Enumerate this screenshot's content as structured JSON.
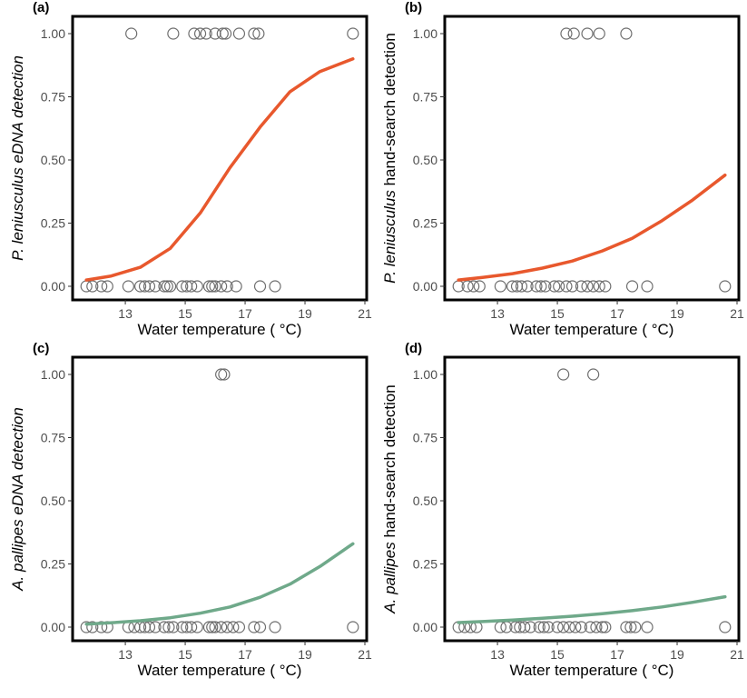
{
  "chart_data": [
    {
      "type": "scatter",
      "panel_label": "(a)",
      "ylabel": {
        "italic": "P. leniusculus eDNA detection",
        "normal": ""
      },
      "xlabel": "Water temperature ( °C)",
      "xlim": [
        11.3,
        21.0
      ],
      "ylim": [
        0,
        1
      ],
      "x_ticks": [
        13,
        15,
        17,
        19,
        21
      ],
      "y_ticks": [
        "0.00",
        "0.25",
        "0.50",
        "0.75",
        "1.00"
      ],
      "curve_color": "#e8582d",
      "curve_x": [
        11.7,
        12.5,
        13.5,
        14.5,
        15.5,
        16.5,
        17.5,
        18.5,
        19.5,
        20.6
      ],
      "curve_y": [
        0.025,
        0.04,
        0.075,
        0.15,
        0.29,
        0.47,
        0.63,
        0.77,
        0.85,
        0.9
      ],
      "points": [
        {
          "x": 13.2,
          "y": 1
        },
        {
          "x": 14.6,
          "y": 1
        },
        {
          "x": 15.3,
          "y": 1
        },
        {
          "x": 15.5,
          "y": 1
        },
        {
          "x": 15.7,
          "y": 1
        },
        {
          "x": 16.0,
          "y": 1
        },
        {
          "x": 16.25,
          "y": 1
        },
        {
          "x": 16.35,
          "y": 1
        },
        {
          "x": 16.8,
          "y": 1
        },
        {
          "x": 17.3,
          "y": 1
        },
        {
          "x": 17.45,
          "y": 1
        },
        {
          "x": 20.6,
          "y": 1
        },
        {
          "x": 11.7,
          "y": 0
        },
        {
          "x": 11.9,
          "y": 0
        },
        {
          "x": 12.2,
          "y": 0
        },
        {
          "x": 12.4,
          "y": 0
        },
        {
          "x": 13.1,
          "y": 0
        },
        {
          "x": 13.5,
          "y": 0
        },
        {
          "x": 13.65,
          "y": 0
        },
        {
          "x": 13.8,
          "y": 0
        },
        {
          "x": 14.0,
          "y": 0
        },
        {
          "x": 14.3,
          "y": 0
        },
        {
          "x": 14.4,
          "y": 0
        },
        {
          "x": 14.5,
          "y": 0
        },
        {
          "x": 14.9,
          "y": 0
        },
        {
          "x": 15.05,
          "y": 0
        },
        {
          "x": 15.2,
          "y": 0
        },
        {
          "x": 15.4,
          "y": 0
        },
        {
          "x": 15.8,
          "y": 0
        },
        {
          "x": 15.9,
          "y": 0
        },
        {
          "x": 16.0,
          "y": 0
        },
        {
          "x": 16.2,
          "y": 0
        },
        {
          "x": 16.4,
          "y": 0
        },
        {
          "x": 16.7,
          "y": 0
        },
        {
          "x": 17.5,
          "y": 0
        },
        {
          "x": 18.0,
          "y": 0
        }
      ]
    },
    {
      "type": "scatter",
      "panel_label": "(b)",
      "ylabel": {
        "italic": "P. leniusculus",
        "normal": " hand-search detection"
      },
      "xlabel": "Water temperature ( °C)",
      "xlim": [
        11.3,
        21.0
      ],
      "ylim": [
        0,
        1
      ],
      "x_ticks": [
        13,
        15,
        17,
        19,
        21
      ],
      "y_ticks": [
        "0.00",
        "0.25",
        "0.50",
        "0.75",
        "1.00"
      ],
      "curve_color": "#e8582d",
      "curve_x": [
        11.7,
        12.5,
        13.5,
        14.5,
        15.5,
        16.5,
        17.5,
        18.5,
        19.5,
        20.6
      ],
      "curve_y": [
        0.025,
        0.035,
        0.05,
        0.072,
        0.1,
        0.14,
        0.19,
        0.26,
        0.34,
        0.44
      ],
      "points": [
        {
          "x": 15.3,
          "y": 1
        },
        {
          "x": 15.55,
          "y": 1
        },
        {
          "x": 16.0,
          "y": 1
        },
        {
          "x": 16.4,
          "y": 1
        },
        {
          "x": 17.3,
          "y": 1
        },
        {
          "x": 11.7,
          "y": 0
        },
        {
          "x": 12.0,
          "y": 0
        },
        {
          "x": 12.2,
          "y": 0
        },
        {
          "x": 12.4,
          "y": 0
        },
        {
          "x": 13.1,
          "y": 0
        },
        {
          "x": 13.5,
          "y": 0
        },
        {
          "x": 13.65,
          "y": 0
        },
        {
          "x": 13.8,
          "y": 0
        },
        {
          "x": 14.0,
          "y": 0
        },
        {
          "x": 14.3,
          "y": 0
        },
        {
          "x": 14.45,
          "y": 0
        },
        {
          "x": 14.6,
          "y": 0
        },
        {
          "x": 14.9,
          "y": 0
        },
        {
          "x": 15.05,
          "y": 0
        },
        {
          "x": 15.3,
          "y": 0
        },
        {
          "x": 15.5,
          "y": 0
        },
        {
          "x": 15.8,
          "y": 0
        },
        {
          "x": 16.0,
          "y": 0
        },
        {
          "x": 16.2,
          "y": 0
        },
        {
          "x": 16.4,
          "y": 0
        },
        {
          "x": 16.6,
          "y": 0
        },
        {
          "x": 17.5,
          "y": 0
        },
        {
          "x": 18.0,
          "y": 0
        },
        {
          "x": 20.6,
          "y": 0
        }
      ]
    },
    {
      "type": "scatter",
      "panel_label": "(c)",
      "ylabel": {
        "italic": "A. pallipes eDNA detection",
        "normal": ""
      },
      "xlabel": "Water temperature ( °C)",
      "xlim": [
        11.3,
        21.0
      ],
      "ylim": [
        0,
        1
      ],
      "x_ticks": [
        13,
        15,
        17,
        19,
        21
      ],
      "y_ticks": [
        "0.00",
        "0.25",
        "0.50",
        "0.75",
        "1.00"
      ],
      "curve_color": "#6fa98a",
      "curve_x": [
        11.7,
        12.5,
        13.5,
        14.5,
        15.5,
        16.5,
        17.5,
        18.5,
        19.5,
        20.6
      ],
      "curve_y": [
        0.012,
        0.017,
        0.025,
        0.037,
        0.055,
        0.08,
        0.118,
        0.17,
        0.24,
        0.33
      ],
      "points": [
        {
          "x": 16.2,
          "y": 1
        },
        {
          "x": 16.3,
          "y": 1
        },
        {
          "x": 11.7,
          "y": 0
        },
        {
          "x": 11.9,
          "y": 0
        },
        {
          "x": 12.2,
          "y": 0
        },
        {
          "x": 12.4,
          "y": 0
        },
        {
          "x": 13.1,
          "y": 0
        },
        {
          "x": 13.3,
          "y": 0
        },
        {
          "x": 13.5,
          "y": 0
        },
        {
          "x": 13.65,
          "y": 0
        },
        {
          "x": 13.8,
          "y": 0
        },
        {
          "x": 14.0,
          "y": 0
        },
        {
          "x": 14.3,
          "y": 0
        },
        {
          "x": 14.45,
          "y": 0
        },
        {
          "x": 14.6,
          "y": 0
        },
        {
          "x": 14.9,
          "y": 0
        },
        {
          "x": 15.05,
          "y": 0
        },
        {
          "x": 15.2,
          "y": 0
        },
        {
          "x": 15.4,
          "y": 0
        },
        {
          "x": 15.8,
          "y": 0
        },
        {
          "x": 15.9,
          "y": 0
        },
        {
          "x": 16.0,
          "y": 0
        },
        {
          "x": 16.2,
          "y": 0
        },
        {
          "x": 16.4,
          "y": 0
        },
        {
          "x": 16.6,
          "y": 0
        },
        {
          "x": 16.8,
          "y": 0
        },
        {
          "x": 17.3,
          "y": 0
        },
        {
          "x": 17.5,
          "y": 0
        },
        {
          "x": 18.0,
          "y": 0
        },
        {
          "x": 20.6,
          "y": 0
        }
      ]
    },
    {
      "type": "scatter",
      "panel_label": "(d)",
      "ylabel": {
        "italic": "A. pallipes",
        "normal": " hand-search detection"
      },
      "xlabel": "Water temperature ( °C)",
      "xlim": [
        11.3,
        21.0
      ],
      "ylim": [
        0,
        1
      ],
      "x_ticks": [
        13,
        15,
        17,
        19,
        21
      ],
      "y_ticks": [
        "0.00",
        "0.25",
        "0.50",
        "0.75",
        "1.00"
      ],
      "curve_color": "#6fa98a",
      "curve_x": [
        11.7,
        12.5,
        13.5,
        14.5,
        15.5,
        16.5,
        17.5,
        18.5,
        19.5,
        20.6
      ],
      "curve_y": [
        0.018,
        0.022,
        0.028,
        0.035,
        0.043,
        0.053,
        0.065,
        0.08,
        0.098,
        0.12
      ],
      "points": [
        {
          "x": 15.2,
          "y": 1
        },
        {
          "x": 16.2,
          "y": 1
        },
        {
          "x": 11.7,
          "y": 0
        },
        {
          "x": 11.9,
          "y": 0
        },
        {
          "x": 12.1,
          "y": 0
        },
        {
          "x": 12.3,
          "y": 0
        },
        {
          "x": 13.1,
          "y": 0
        },
        {
          "x": 13.3,
          "y": 0
        },
        {
          "x": 13.6,
          "y": 0
        },
        {
          "x": 13.75,
          "y": 0
        },
        {
          "x": 13.9,
          "y": 0
        },
        {
          "x": 14.1,
          "y": 0
        },
        {
          "x": 14.4,
          "y": 0
        },
        {
          "x": 14.55,
          "y": 0
        },
        {
          "x": 14.7,
          "y": 0
        },
        {
          "x": 15.0,
          "y": 0
        },
        {
          "x": 15.2,
          "y": 0
        },
        {
          "x": 15.4,
          "y": 0
        },
        {
          "x": 15.6,
          "y": 0
        },
        {
          "x": 15.8,
          "y": 0
        },
        {
          "x": 16.1,
          "y": 0
        },
        {
          "x": 16.3,
          "y": 0
        },
        {
          "x": 16.5,
          "y": 0
        },
        {
          "x": 16.6,
          "y": 0
        },
        {
          "x": 17.3,
          "y": 0
        },
        {
          "x": 17.45,
          "y": 0
        },
        {
          "x": 17.6,
          "y": 0
        },
        {
          "x": 18.0,
          "y": 0
        },
        {
          "x": 20.6,
          "y": 0
        }
      ]
    }
  ]
}
